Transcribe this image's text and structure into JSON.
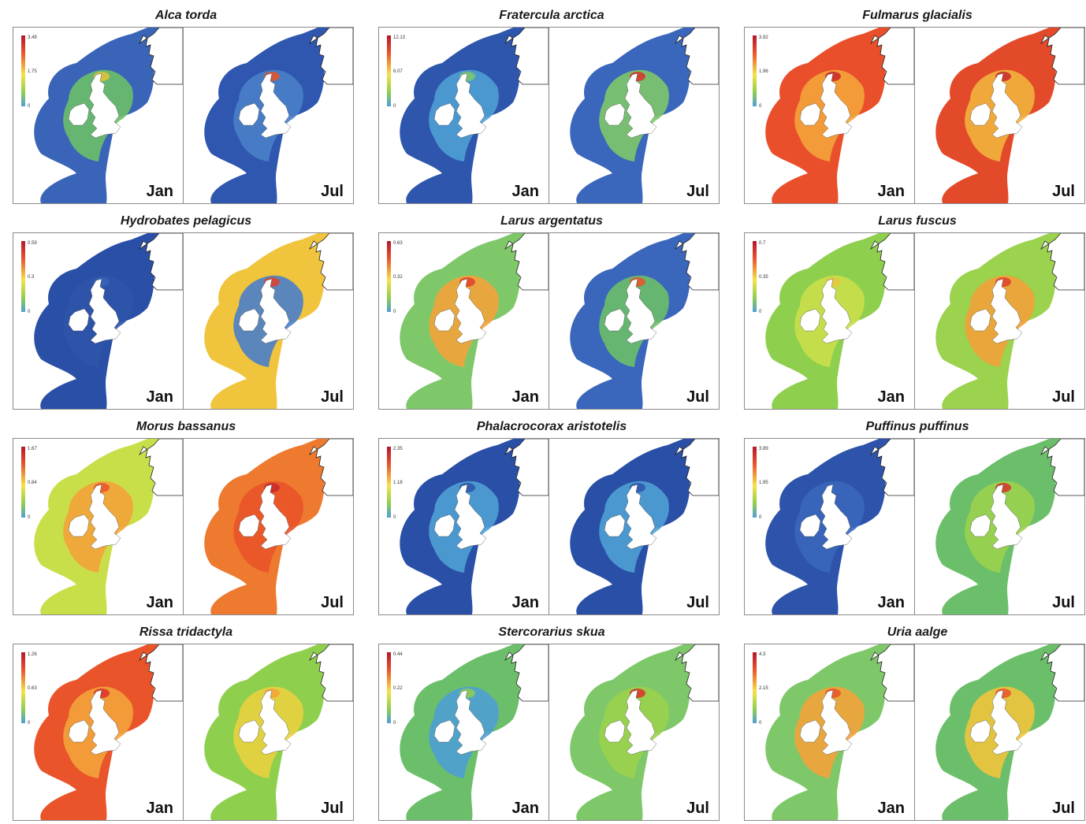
{
  "species": [
    {
      "name": "Alca torda",
      "legend": {
        "max": "3.49",
        "mid": "1.75",
        "min": "0"
      },
      "jan": {
        "bg": "#3a64b8",
        "coast": "#6cbf6a",
        "hot": "#e8c33a",
        "label": "Jan"
      },
      "jul": {
        "bg": "#2f57b0",
        "coast": "#4a7fc9",
        "hot": "#e9542a",
        "label": "Jul"
      }
    },
    {
      "name": "Fratercula arctica",
      "legend": {
        "max": "12.13",
        "mid": "6.07",
        "min": "0"
      },
      "jan": {
        "bg": "#2e56ad",
        "coast": "#4f9fd4",
        "hot": "#7fc86a",
        "label": "Jan"
      },
      "jul": {
        "bg": "#3a66bb",
        "coast": "#7fc86a",
        "hot": "#d9312a",
        "label": "Jul"
      }
    },
    {
      "name": "Fulmarus glacialis",
      "legend": {
        "max": "3.92",
        "mid": "1.96",
        "min": "0"
      },
      "jan": {
        "bg": "#e94f2a",
        "coast": "#f3a33a",
        "hot": "#c8282a",
        "label": "Jan"
      },
      "jul": {
        "bg": "#e34a2a",
        "coast": "#f2b33d",
        "hot": "#c8282a",
        "label": "Jul"
      }
    },
    {
      "name": "Hydrobates pelagicus",
      "legend": {
        "max": "0.59",
        "mid": "0.3",
        "min": "0"
      },
      "jan": {
        "bg": "#2a4fa6",
        "coast": "#2d54aa",
        "hot": "#3a64b8",
        "label": "Jan"
      },
      "jul": {
        "bg": "#f0c43c",
        "coast": "#4a7fc9",
        "hot": "#e0402a",
        "label": "Jul"
      }
    },
    {
      "name": "Larus argentatus",
      "legend": {
        "max": "0.63",
        "mid": "0.32",
        "min": "0"
      },
      "jan": {
        "bg": "#7fc86a",
        "coast": "#f3a33a",
        "hot": "#e0402a",
        "label": "Jan"
      },
      "jul": {
        "bg": "#3a66bb",
        "coast": "#6cbf6a",
        "hot": "#e9542a",
        "label": "Jul"
      }
    },
    {
      "name": "Larus fuscus",
      "legend": {
        "max": "0.7",
        "mid": "0.35",
        "min": "0"
      },
      "jan": {
        "bg": "#8fcf4e",
        "coast": "#c9df4a",
        "hot": "#e9c83c",
        "label": "Jan"
      },
      "jul": {
        "bg": "#9bd24e",
        "coast": "#f2a13a",
        "hot": "#e0402a",
        "label": "Jul"
      }
    },
    {
      "name": "Morus bassanus",
      "legend": {
        "max": "1.67",
        "mid": "0.84",
        "min": "0"
      },
      "jan": {
        "bg": "#c9df4a",
        "coast": "#f3a33a",
        "hot": "#e9542a",
        "label": "Jan"
      },
      "jul": {
        "bg": "#ee7a30",
        "coast": "#e9542a",
        "hot": "#c8282a",
        "label": "Jul"
      }
    },
    {
      "name": "Phalacrocorax aristotelis",
      "legend": {
        "max": "2.35",
        "mid": "1.18",
        "min": "0"
      },
      "jan": {
        "bg": "#2a4fa6",
        "coast": "#4f9fd4",
        "hot": "#2d54aa",
        "label": "Jan"
      },
      "jul": {
        "bg": "#2a4fa6",
        "coast": "#4f9fd4",
        "hot": "#2d54aa",
        "label": "Jul"
      }
    },
    {
      "name": "Puffinus puffinus",
      "legend": {
        "max": "3.89",
        "mid": "1.95",
        "min": "0"
      },
      "jan": {
        "bg": "#2d54aa",
        "coast": "#3a66bb",
        "hot": "#3a66bb",
        "label": "Jan"
      },
      "jul": {
        "bg": "#6cbf6a",
        "coast": "#9bd24e",
        "hot": "#d9312a",
        "label": "Jul"
      }
    },
    {
      "name": "Rissa tridactyla",
      "legend": {
        "max": "1.26",
        "mid": "0.63",
        "min": "0"
      },
      "jan": {
        "bg": "#e9542a",
        "coast": "#f3a33a",
        "hot": "#d9312a",
        "label": "Jan"
      },
      "jul": {
        "bg": "#8fcf4e",
        "coast": "#e9d040",
        "hot": "#f3a33a",
        "label": "Jul"
      }
    },
    {
      "name": "Stercorarius skua",
      "legend": {
        "max": "0.44",
        "mid": "0.22",
        "min": "0"
      },
      "jan": {
        "bg": "#6cbf6a",
        "coast": "#4f9fd4",
        "hot": "#8fcf4e",
        "label": "Jan"
      },
      "jul": {
        "bg": "#7fc86a",
        "coast": "#9bd24e",
        "hot": "#d9312a",
        "label": "Jul"
      }
    },
    {
      "name": "Uria aalge",
      "legend": {
        "max": "4.3",
        "mid": "2.15",
        "min": "0"
      },
      "jan": {
        "bg": "#7fc86a",
        "coast": "#f3a33a",
        "hot": "#e9542a",
        "label": "Jan"
      },
      "jul": {
        "bg": "#6cbf6a",
        "coast": "#f0c43c",
        "hot": "#e9542a",
        "label": "Jul"
      }
    }
  ]
}
